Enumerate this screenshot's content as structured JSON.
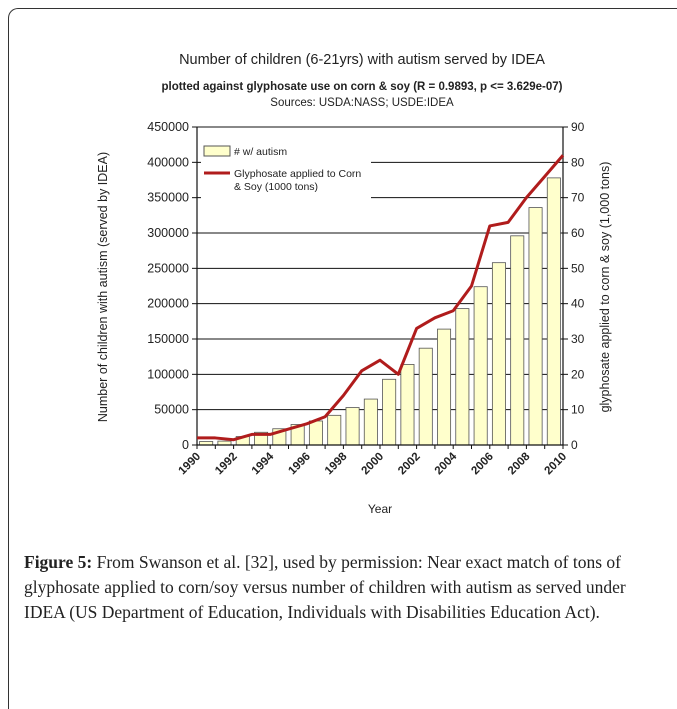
{
  "chart_data": {
    "type": "bar+line",
    "title": "Number of children (6-21yrs) with autism served by IDEA",
    "subtitle": "plotted against glyphosate use on corn & soy (R = 0.9893, p <= 3.629e-07)",
    "sources": "Sources: USDA:NASS; USDE:IDEA",
    "xlabel": "Year",
    "ylabel_left": "Number of children with autism (served by IDEA)",
    "ylabel_right": "glyphosate applied to corn & soy (1,000 tons)",
    "ylim_left": [
      0,
      450000
    ],
    "ylim_right": [
      0,
      90
    ],
    "yticks_left": [
      "0",
      "50000",
      "100000",
      "150000",
      "200000",
      "250000",
      "300000",
      "350000",
      "400000",
      "450000"
    ],
    "yticks_right": [
      "0",
      "10",
      "20",
      "30",
      "40",
      "50",
      "60",
      "70",
      "80",
      "90"
    ],
    "xtick_labels": [
      "1990",
      "1992",
      "1994",
      "1996",
      "1998",
      "2000",
      "2002",
      "2004",
      "2006",
      "2008",
      "2010"
    ],
    "grid": "horizontal",
    "legend_position": "top-left",
    "series": [
      {
        "name": "# w/ autism",
        "type": "bar",
        "axis": "left",
        "color": "#ffffcc",
        "x": [
          1991,
          1992,
          1993,
          1994,
          1995,
          1996,
          1997,
          1998,
          1999,
          2000,
          2001,
          2002,
          2003,
          2004,
          2005,
          2006,
          2007,
          2008,
          2009,
          2010
        ],
        "values": [
          5000,
          5500,
          12000,
          18000,
          23000,
          29000,
          34000,
          42000,
          53000,
          65000,
          93000,
          114000,
          137000,
          164000,
          193000,
          224000,
          258000,
          296000,
          336000,
          378000
        ]
      },
      {
        "name": "Glyphosate applied to Corn & Soy (1000 tons)",
        "type": "line",
        "axis": "right",
        "color": "#b01c1c",
        "x": [
          1990,
          1991,
          1992,
          1993,
          1994,
          1995,
          1996,
          1997,
          1998,
          1999,
          2000,
          2001,
          2002,
          2003,
          2004,
          2005,
          2006,
          2007,
          2008,
          2009,
          2010
        ],
        "values": [
          2,
          2,
          1.5,
          3,
          3,
          4.5,
          6,
          8,
          14,
          21,
          24,
          20,
          33,
          36,
          38,
          45,
          62,
          63,
          70,
          76,
          82
        ]
      }
    ]
  },
  "caption": {
    "label": "Figure 5:",
    "text": " From Swanson et al. [32], used by permission: Near exact match of tons of glyphosate applied to corn/soy versus number of children with autism as served under IDEA (US Department of Education, Individuals with Disabilities Education Act)."
  }
}
